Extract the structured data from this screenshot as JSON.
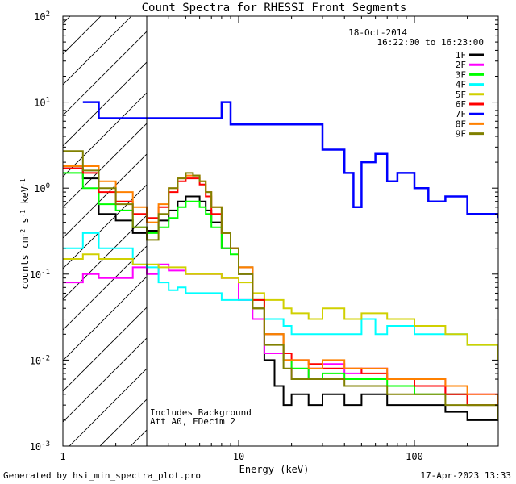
{
  "chart_data": {
    "type": "line",
    "title": "Count Spectra for RHESSI Front Segments",
    "xlabel": "Energy (keV)",
    "ylabel": "counts cm-2 s-1 keV-1",
    "ylabel_parts": {
      "base": "counts cm",
      "exp1": "-2",
      "mid": " s",
      "exp2": "-1",
      "mid2": " keV",
      "exp3": "-1"
    },
    "xscale": "log",
    "yscale": "log",
    "xlim": [
      1,
      300
    ],
    "ylim": [
      0.001,
      100
    ],
    "x_ticks": [
      "1",
      "10",
      "100"
    ],
    "y_ticks": [
      {
        "base": "10",
        "exp": "-3"
      },
      {
        "base": "10",
        "exp": "-2"
      },
      {
        "base": "10",
        "exp": "-1"
      },
      {
        "base": "10",
        "exp": "0"
      },
      {
        "base": "10",
        "exp": "1"
      },
      {
        "base": "10",
        "exp": "2"
      }
    ],
    "date": "18-Oct-2014",
    "time_range": "16:22:00 to 16:23:00",
    "excluded_below_keV": 3,
    "annotations": [
      "Includes Background",
      "Att A0, FDecim 2"
    ],
    "series": [
      {
        "name": "1F",
        "color": "#000000",
        "points": [
          [
            1,
            1.7
          ],
          [
            1.3,
            1.3
          ],
          [
            1.6,
            0.5
          ],
          [
            2,
            0.42
          ],
          [
            2.5,
            0.3
          ],
          [
            3,
            0.32
          ],
          [
            3.5,
            0.42
          ],
          [
            4,
            0.55
          ],
          [
            4.5,
            0.7
          ],
          [
            5,
            0.8
          ],
          [
            5.5,
            0.8
          ],
          [
            6,
            0.7
          ],
          [
            6.5,
            0.55
          ],
          [
            7,
            0.4
          ],
          [
            8,
            0.2
          ],
          [
            9,
            0.2
          ],
          [
            10,
            0.1
          ],
          [
            12,
            0.04
          ],
          [
            14,
            0.01
          ],
          [
            16,
            0.005
          ],
          [
            18,
            0.003
          ],
          [
            20,
            0.004
          ],
          [
            25,
            0.003
          ],
          [
            30,
            0.004
          ],
          [
            40,
            0.003
          ],
          [
            50,
            0.004
          ],
          [
            70,
            0.003
          ],
          [
            100,
            0.003
          ],
          [
            150,
            0.0025
          ],
          [
            200,
            0.002
          ],
          [
            300,
            0.002
          ]
        ]
      },
      {
        "name": "2F",
        "color": "#ff00ff",
        "points": [
          [
            1,
            0.08
          ],
          [
            1.3,
            0.1
          ],
          [
            1.6,
            0.09
          ],
          [
            2,
            0.09
          ],
          [
            2.5,
            0.12
          ],
          [
            3,
            0.1
          ],
          [
            3.5,
            0.13
          ],
          [
            4,
            0.11
          ],
          [
            5,
            0.1
          ],
          [
            6,
            0.1
          ],
          [
            7,
            0.1
          ],
          [
            8,
            0.09
          ],
          [
            10,
            0.05
          ],
          [
            12,
            0.03
          ],
          [
            14,
            0.012
          ],
          [
            18,
            0.01
          ],
          [
            20,
            0.006
          ],
          [
            25,
            0.008
          ],
          [
            30,
            0.009
          ],
          [
            40,
            0.007
          ],
          [
            50,
            0.008
          ],
          [
            70,
            0.006
          ],
          [
            100,
            0.006
          ],
          [
            150,
            0.004
          ],
          [
            200,
            0.004
          ],
          [
            300,
            0.003
          ]
        ]
      },
      {
        "name": "3F",
        "color": "#00ff00",
        "points": [
          [
            1,
            1.5
          ],
          [
            1.3,
            1.0
          ],
          [
            1.6,
            0.65
          ],
          [
            2,
            0.55
          ],
          [
            2.5,
            0.35
          ],
          [
            3,
            0.3
          ],
          [
            3.5,
            0.35
          ],
          [
            4,
            0.45
          ],
          [
            4.5,
            0.6
          ],
          [
            5,
            0.7
          ],
          [
            5.5,
            0.7
          ],
          [
            6,
            0.6
          ],
          [
            6.5,
            0.5
          ],
          [
            7,
            0.35
          ],
          [
            8,
            0.2
          ],
          [
            9,
            0.17
          ],
          [
            10,
            0.12
          ],
          [
            12,
            0.05
          ],
          [
            14,
            0.02
          ],
          [
            18,
            0.01
          ],
          [
            20,
            0.008
          ],
          [
            25,
            0.006
          ],
          [
            30,
            0.007
          ],
          [
            40,
            0.006
          ],
          [
            50,
            0.006
          ],
          [
            70,
            0.005
          ],
          [
            100,
            0.004
          ],
          [
            150,
            0.004
          ],
          [
            200,
            0.003
          ],
          [
            300,
            0.003
          ]
        ]
      },
      {
        "name": "4F",
        "color": "#00ffff",
        "points": [
          [
            1,
            0.2
          ],
          [
            1.3,
            0.3
          ],
          [
            1.6,
            0.2
          ],
          [
            2,
            0.2
          ],
          [
            2.5,
            0.13
          ],
          [
            3,
            0.12
          ],
          [
            3.5,
            0.08
          ],
          [
            4,
            0.065
          ],
          [
            4.5,
            0.07
          ],
          [
            5,
            0.06
          ],
          [
            6,
            0.06
          ],
          [
            7,
            0.06
          ],
          [
            8,
            0.05
          ],
          [
            9,
            0.05
          ],
          [
            10,
            0.05
          ],
          [
            12,
            0.04
          ],
          [
            14,
            0.03
          ],
          [
            18,
            0.025
          ],
          [
            20,
            0.02
          ],
          [
            25,
            0.02
          ],
          [
            30,
            0.02
          ],
          [
            40,
            0.02
          ],
          [
            50,
            0.03
          ],
          [
            60,
            0.02
          ],
          [
            70,
            0.025
          ],
          [
            100,
            0.02
          ],
          [
            150,
            0.02
          ],
          [
            200,
            0.015
          ],
          [
            300,
            0.012
          ]
        ]
      },
      {
        "name": "5F",
        "color": "#d0d000",
        "points": [
          [
            1,
            0.15
          ],
          [
            1.3,
            0.17
          ],
          [
            1.6,
            0.15
          ],
          [
            2,
            0.15
          ],
          [
            2.5,
            0.13
          ],
          [
            3,
            0.13
          ],
          [
            3.5,
            0.12
          ],
          [
            4,
            0.12
          ],
          [
            5,
            0.1
          ],
          [
            6,
            0.1
          ],
          [
            7,
            0.1
          ],
          [
            8,
            0.09
          ],
          [
            10,
            0.08
          ],
          [
            12,
            0.06
          ],
          [
            14,
            0.05
          ],
          [
            18,
            0.04
          ],
          [
            20,
            0.035
          ],
          [
            25,
            0.03
          ],
          [
            30,
            0.04
          ],
          [
            40,
            0.03
          ],
          [
            50,
            0.035
          ],
          [
            70,
            0.03
          ],
          [
            100,
            0.025
          ],
          [
            150,
            0.02
          ],
          [
            200,
            0.015
          ],
          [
            300,
            0.01
          ]
        ]
      },
      {
        "name": "6F",
        "color": "#ff0000",
        "points": [
          [
            1,
            1.7
          ],
          [
            1.3,
            1.5
          ],
          [
            1.6,
            0.9
          ],
          [
            2,
            0.7
          ],
          [
            2.5,
            0.5
          ],
          [
            3,
            0.45
          ],
          [
            3.5,
            0.6
          ],
          [
            4,
            0.9
          ],
          [
            4.5,
            1.2
          ],
          [
            5,
            1.3
          ],
          [
            5.5,
            1.3
          ],
          [
            6,
            1.1
          ],
          [
            6.5,
            0.8
          ],
          [
            7,
            0.5
          ],
          [
            8,
            0.3
          ],
          [
            9,
            0.2
          ],
          [
            10,
            0.12
          ],
          [
            12,
            0.05
          ],
          [
            14,
            0.02
          ],
          [
            18,
            0.012
          ],
          [
            20,
            0.01
          ],
          [
            25,
            0.009
          ],
          [
            30,
            0.008
          ],
          [
            40,
            0.008
          ],
          [
            50,
            0.007
          ],
          [
            70,
            0.006
          ],
          [
            100,
            0.005
          ],
          [
            150,
            0.004
          ],
          [
            200,
            0.003
          ],
          [
            300,
            0.003
          ]
        ]
      },
      {
        "name": "7F",
        "color": "#0000ff",
        "points": [
          [
            1.3,
            10
          ],
          [
            1.6,
            6.5
          ],
          [
            2,
            6.5
          ],
          [
            8,
            10
          ],
          [
            9,
            5.5
          ],
          [
            30,
            2.8
          ],
          [
            40,
            1.5
          ],
          [
            45,
            0.6
          ],
          [
            50,
            2.0
          ],
          [
            60,
            2.5
          ],
          [
            70,
            1.2
          ],
          [
            80,
            1.5
          ],
          [
            100,
            1.0
          ],
          [
            120,
            0.7
          ],
          [
            150,
            0.8
          ],
          [
            200,
            0.5
          ],
          [
            250,
            0.5
          ],
          [
            300,
            0.45
          ]
        ]
      },
      {
        "name": "8F",
        "color": "#ff8000",
        "points": [
          [
            1,
            1.8
          ],
          [
            1.3,
            1.8
          ],
          [
            1.6,
            1.2
          ],
          [
            2,
            0.9
          ],
          [
            2.5,
            0.6
          ],
          [
            3,
            0.4
          ],
          [
            3.5,
            0.65
          ],
          [
            4,
            1.0
          ],
          [
            4.5,
            1.3
          ],
          [
            5,
            1.4
          ],
          [
            5.5,
            1.4
          ],
          [
            6,
            1.2
          ],
          [
            6.5,
            0.9
          ],
          [
            7,
            0.6
          ],
          [
            8,
            0.3
          ],
          [
            9,
            0.2
          ],
          [
            10,
            0.12
          ],
          [
            12,
            0.04
          ],
          [
            14,
            0.02
          ],
          [
            18,
            0.01
          ],
          [
            20,
            0.01
          ],
          [
            25,
            0.008
          ],
          [
            30,
            0.01
          ],
          [
            40,
            0.008
          ],
          [
            50,
            0.008
          ],
          [
            70,
            0.006
          ],
          [
            100,
            0.006
          ],
          [
            150,
            0.005
          ],
          [
            200,
            0.004
          ],
          [
            300,
            0.003
          ]
        ]
      },
      {
        "name": "9F",
        "color": "#808000",
        "points": [
          [
            1,
            2.7
          ],
          [
            1.3,
            1.6
          ],
          [
            1.6,
            1.0
          ],
          [
            2,
            0.65
          ],
          [
            2.5,
            0.35
          ],
          [
            3,
            0.25
          ],
          [
            3.5,
            0.5
          ],
          [
            4,
            1.0
          ],
          [
            4.5,
            1.3
          ],
          [
            5,
            1.5
          ],
          [
            5.5,
            1.4
          ],
          [
            6,
            1.2
          ],
          [
            6.5,
            0.9
          ],
          [
            7,
            0.6
          ],
          [
            8,
            0.3
          ],
          [
            9,
            0.2
          ],
          [
            10,
            0.1
          ],
          [
            12,
            0.04
          ],
          [
            14,
            0.015
          ],
          [
            18,
            0.008
          ],
          [
            20,
            0.006
          ],
          [
            25,
            0.006
          ],
          [
            30,
            0.006
          ],
          [
            40,
            0.005
          ],
          [
            50,
            0.005
          ],
          [
            70,
            0.004
          ],
          [
            100,
            0.004
          ],
          [
            150,
            0.003
          ],
          [
            200,
            0.003
          ],
          [
            300,
            0.002
          ]
        ]
      }
    ]
  },
  "footer": {
    "left": "Generated by hsi_min_spectra_plot.pro",
    "right": "17-Apr-2023 13:33"
  }
}
